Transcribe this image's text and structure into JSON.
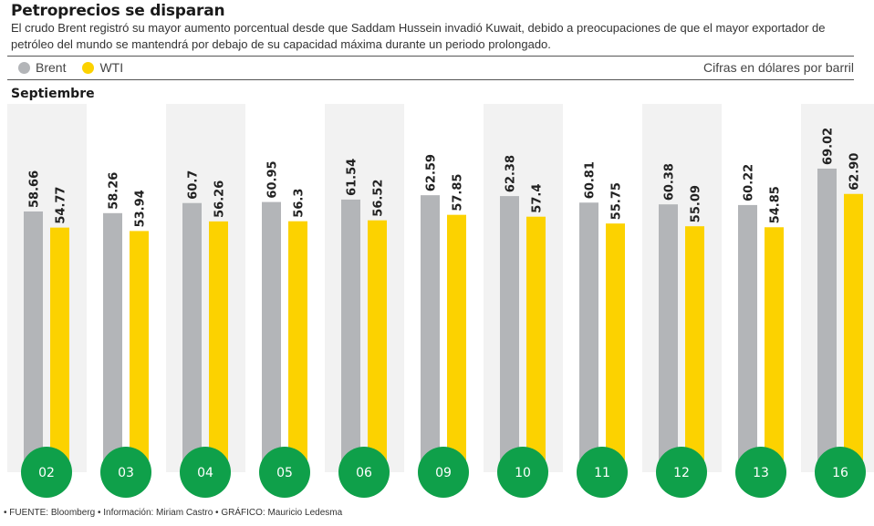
{
  "header": {
    "title": "Petroprecios se disparan",
    "subtitle": "El crudo Brent registró su mayor aumento porcentual desde que Saddam Hussein invadió Kuwait, debido a preocupaciones de que el mayor exportador de petróleo del mundo se mantendrá por debajo de su capacidad máxima durante un periodo prolongado.",
    "units": "Cifras en dólares por barril",
    "month": "Septiembre"
  },
  "legend": [
    {
      "label": "Brent",
      "color": "#b3b5b8"
    },
    {
      "label": "WTI",
      "color": "#fcd200"
    }
  ],
  "footer": "• FUENTE: Bloomberg • Información: Miriam Castro • GRÁFICO: Mauricio Ledesma",
  "colors": {
    "brent": "#b3b5b8",
    "wti": "#fcd200",
    "day_circle": "#0fa04a",
    "panel": "#f2f2f2"
  },
  "chart_data": {
    "type": "bar",
    "title": "Petroprecios se disparan",
    "xlabel": "Septiembre",
    "ylabel": "Cifras en dólares por barril",
    "categories": [
      "02",
      "03",
      "04",
      "05",
      "06",
      "09",
      "10",
      "11",
      "12",
      "13",
      "16"
    ],
    "series": [
      {
        "name": "Brent",
        "values": [
          58.66,
          58.26,
          60.7,
          60.95,
          61.54,
          62.59,
          62.38,
          60.81,
          60.38,
          60.22,
          69.02
        ],
        "labels": [
          "58.66",
          "58.26",
          "60.7",
          "60.95",
          "61.54",
          "62.59",
          "62.38",
          "60.81",
          "60.38",
          "60.22",
          "69.02"
        ]
      },
      {
        "name": "WTI",
        "values": [
          54.77,
          53.94,
          56.26,
          56.3,
          56.52,
          57.85,
          57.4,
          55.75,
          55.09,
          54.85,
          62.9
        ],
        "labels": [
          "54.77",
          "53.94",
          "56.26",
          "56.3",
          "56.52",
          "57.85",
          "57.4",
          "55.75",
          "55.09",
          "54.85",
          "62.90"
        ]
      }
    ],
    "grid": false,
    "legend_position": "top-left"
  }
}
